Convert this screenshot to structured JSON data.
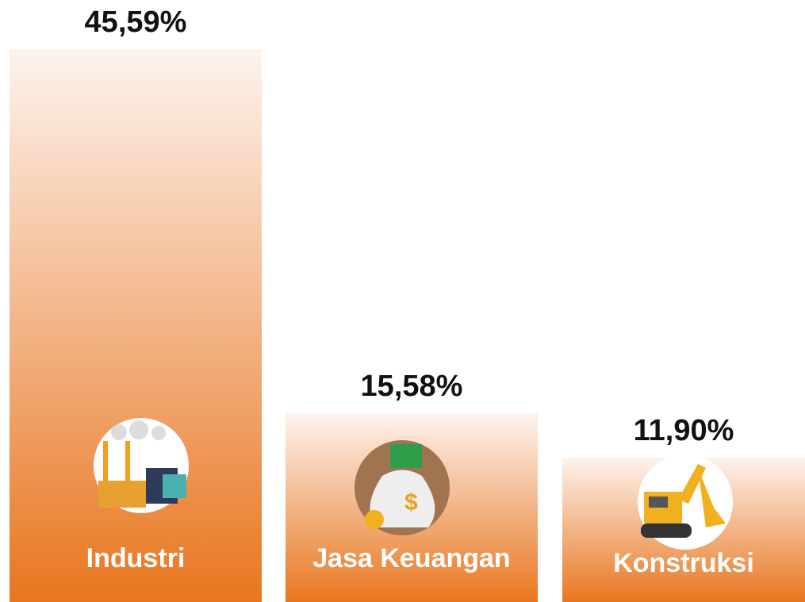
{
  "chart_data": {
    "type": "bar",
    "categories": [
      "Industri",
      "Jasa Keuangan",
      "Konstruksi"
    ],
    "values": [
      45.59,
      15.58,
      11.9
    ],
    "value_labels": [
      "45,59%",
      "15,58%",
      "11,90%"
    ],
    "color": "#e8761f"
  }
}
